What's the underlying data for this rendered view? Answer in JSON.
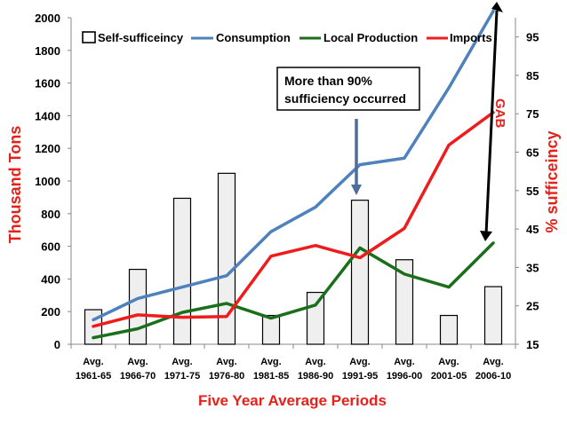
{
  "chart_data": {
    "type": "bar+line",
    "categories": [
      [
        "Avg.",
        "1961-65"
      ],
      [
        "Avg.",
        "1966-70"
      ],
      [
        "Avg.",
        "1971-75"
      ],
      [
        "Avg.",
        "1976-80"
      ],
      [
        "Avg.",
        "1981-85"
      ],
      [
        "Avg.",
        "1986-90"
      ],
      [
        "Avg.",
        "1991-95"
      ],
      [
        "Avg.",
        "1996-00"
      ],
      [
        "Avg.",
        "2001-05"
      ],
      [
        "Avg.",
        "2006-10"
      ]
    ],
    "bars": {
      "name": "Self-sufficeincy",
      "axis": "right",
      "values": [
        24,
        34.5,
        53,
        59.5,
        22.5,
        28.5,
        52.5,
        37,
        22.5,
        30
      ],
      "color": "#efefef"
    },
    "series": [
      {
        "name": "Consumption",
        "axis": "left",
        "color": "#4f81bd",
        "values": [
          150,
          280,
          350,
          420,
          690,
          840,
          1100,
          1140,
          1570,
          2040
        ]
      },
      {
        "name": "Local Production",
        "axis": "left",
        "color": "#1a6f1a",
        "values": [
          40,
          95,
          195,
          250,
          160,
          240,
          590,
          430,
          350,
          620
        ]
      },
      {
        "name": "Imports",
        "axis": "left",
        "color": "#ee1c1c",
        "values": [
          110,
          180,
          165,
          170,
          540,
          605,
          530,
          710,
          1220,
          1420
        ]
      }
    ],
    "left_axis": {
      "min": 0,
      "max": 2000,
      "step": 200,
      "ticks": [
        "0",
        "200",
        "400",
        "600",
        "800",
        "1000",
        "1200",
        "1400",
        "1600",
        "1800",
        "2000"
      ]
    },
    "right_axis": {
      "min": 15,
      "max": 100,
      "ticks": [
        "15",
        "25",
        "35",
        "45",
        "55",
        "65",
        "75",
        "85",
        "95"
      ]
    },
    "xlabel": "Five Year Average Periods",
    "ylabel": "Thousand Tons",
    "y2label": "% sufficeincy",
    "annotations": {
      "callout": [
        "More than 90%",
        "sufficiency occurred"
      ],
      "gap_label": "GAB"
    },
    "legend_position": "top"
  }
}
